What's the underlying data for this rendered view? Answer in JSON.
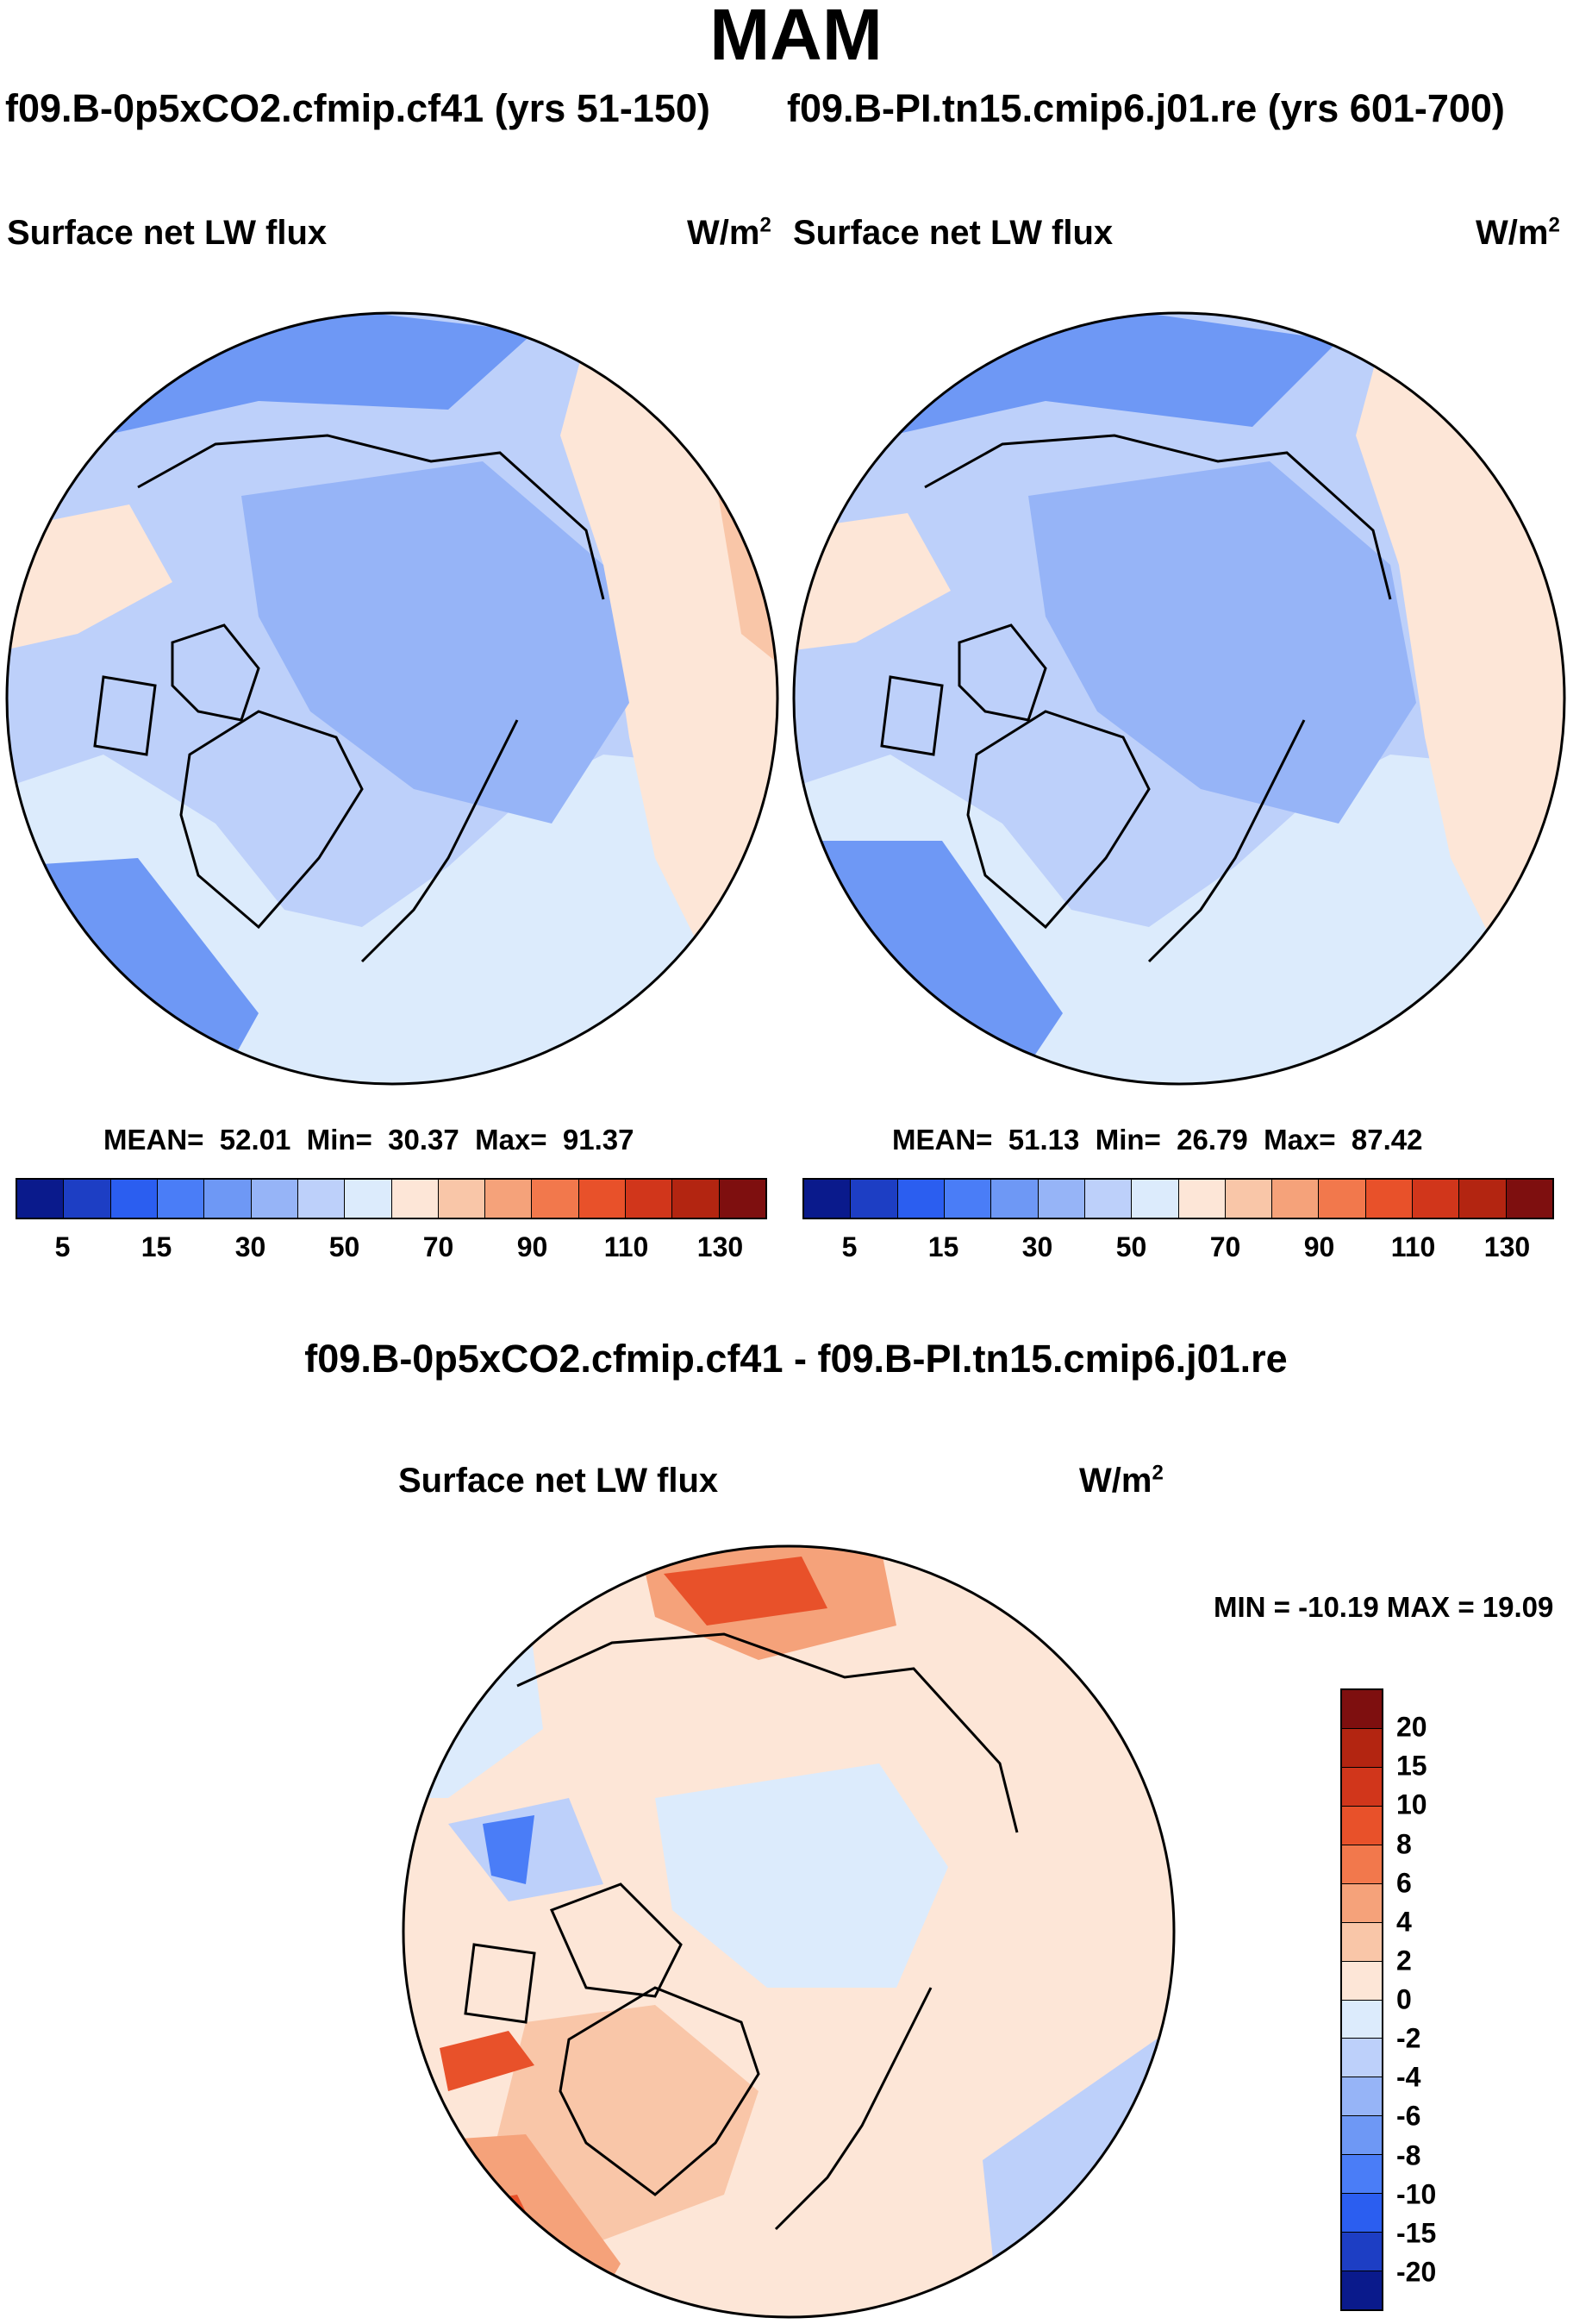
{
  "season": "MAM",
  "left_panel": {
    "case": "f09.B-0p5xCO2.cfmip.cf41 (yrs 51-150)",
    "variable": "Surface net LW flux",
    "units_base": "W/m",
    "units_exp": "2",
    "stats": {
      "mean_label": "MEAN=",
      "mean": "52.01",
      "min_label": "Min=",
      "min": "30.37",
      "max_label": "Max=",
      "max": "91.37"
    }
  },
  "right_panel": {
    "case": "f09.B-PI.tn15.cmip6.j01.re (yrs 601-700)",
    "variable": "Surface net LW flux",
    "units_base": "W/m",
    "units_exp": "2",
    "stats": {
      "mean_label": "MEAN=",
      "mean": "51.13",
      "min_label": "Min=",
      "min": "26.79",
      "max_label": "Max=",
      "max": "87.42"
    }
  },
  "diff_panel": {
    "title": "f09.B-0p5xCO2.cfmip.cf41 - f09.B-PI.tn15.cmip6.j01.re",
    "variable": "Surface net LW flux",
    "units_base": "W/m",
    "units_exp": "2",
    "minmax": "MIN = -10.19 MAX =  19.09"
  },
  "abs_colorbar": {
    "colors": [
      "#0a1a8c",
      "#1d3ec4",
      "#2b5ef0",
      "#4a7df7",
      "#6e98f5",
      "#96b4f7",
      "#bdd0fa",
      "#dcebfc",
      "#fde6d7",
      "#f9c6a8",
      "#f5a27a",
      "#f2784c",
      "#e8512a",
      "#d1361b",
      "#b32511",
      "#7e0f0f"
    ],
    "labels": [
      "5",
      "15",
      "30",
      "50",
      "70",
      "90",
      "110",
      "130"
    ]
  },
  "diff_colorbar": {
    "colors": [
      "#7e0f0f",
      "#b32511",
      "#d1361b",
      "#e8512a",
      "#f2784c",
      "#f5a27a",
      "#f9c6a8",
      "#fde6d7",
      "#dcebfc",
      "#bdd0fa",
      "#96b4f7",
      "#6e98f5",
      "#4a7df7",
      "#2b5ef0",
      "#1d3ec4",
      "#0a1a8c"
    ],
    "labels": [
      "20",
      "15",
      "10",
      "8",
      "6",
      "4",
      "2",
      "0",
      "-2",
      "-4",
      "-6",
      "-8",
      "-10",
      "-15",
      "-20"
    ]
  },
  "map_fields": {
    "left": {
      "base": "#bdd0fa",
      "ocean_atlantic": "#dcebfc",
      "pacific": "#fde6d7",
      "warm": "#f9c6a8",
      "cold": "#96b4f7",
      "colder": "#6e98f5"
    },
    "right": {
      "base": "#bdd0fa",
      "ocean_atlantic": "#dcebfc",
      "pacific": "#fde6d7",
      "warm": "#f9c6a8",
      "cold": "#96b4f7",
      "colder": "#6e98f5"
    },
    "diff": {
      "base": "#fde6d7",
      "neutral": "#dcebfc",
      "warm": "#f9c6a8",
      "warmer": "#f5a27a",
      "hot": "#e8512a",
      "cool": "#bdd0fa",
      "colder": "#4a7df7"
    }
  }
}
